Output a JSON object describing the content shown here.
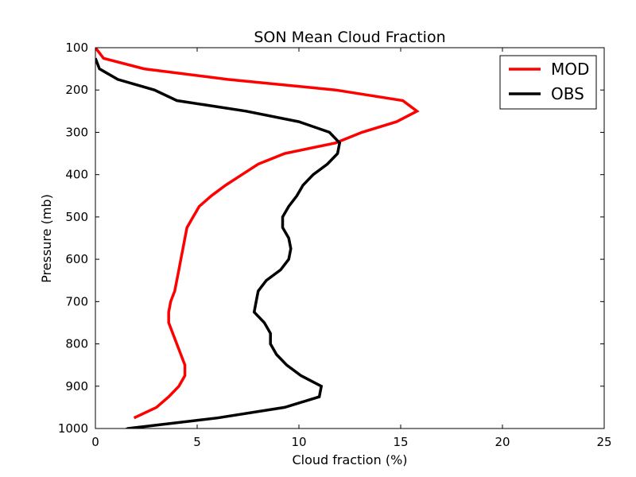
{
  "chart_data": {
    "type": "line",
    "title": "SON Mean Cloud Fraction",
    "xlabel": "Cloud fraction (%)",
    "ylabel": "Pressure (mb)",
    "xlim": [
      0,
      25
    ],
    "ylim": [
      1000,
      100
    ],
    "y_inverted": true,
    "xticks": [
      "0",
      "5",
      "10",
      "15",
      "20",
      "25"
    ],
    "yticks": [
      "100",
      "200",
      "300",
      "400",
      "500",
      "600",
      "700",
      "800",
      "900",
      "1000"
    ],
    "grid": false,
    "legend": "top-right",
    "series": [
      {
        "name": "MOD",
        "color": "#ff0000",
        "points": [
          [
            0.0,
            100
          ],
          [
            0.4,
            125
          ],
          [
            2.4,
            150
          ],
          [
            6.5,
            175
          ],
          [
            11.8,
            200
          ],
          [
            15.1,
            225
          ],
          [
            15.8,
            250
          ],
          [
            14.8,
            275
          ],
          [
            13.1,
            300
          ],
          [
            11.8,
            325
          ],
          [
            9.3,
            350
          ],
          [
            8.0,
            375
          ],
          [
            7.2,
            400
          ],
          [
            6.4,
            425
          ],
          [
            5.7,
            450
          ],
          [
            5.1,
            475
          ],
          [
            4.8,
            500
          ],
          [
            4.5,
            525
          ],
          [
            4.4,
            550
          ],
          [
            4.3,
            575
          ],
          [
            4.2,
            600
          ],
          [
            4.1,
            625
          ],
          [
            4.0,
            650
          ],
          [
            3.9,
            675
          ],
          [
            3.7,
            700
          ],
          [
            3.6,
            725
          ],
          [
            3.6,
            750
          ],
          [
            3.8,
            775
          ],
          [
            4.0,
            800
          ],
          [
            4.2,
            825
          ],
          [
            4.4,
            850
          ],
          [
            4.4,
            875
          ],
          [
            4.1,
            900
          ],
          [
            3.6,
            925
          ],
          [
            3.0,
            950
          ],
          [
            1.9,
            975
          ]
        ]
      },
      {
        "name": "OBS",
        "color": "#000000",
        "points": [
          [
            0.0,
            125
          ],
          [
            0.2,
            150
          ],
          [
            1.1,
            175
          ],
          [
            2.9,
            200
          ],
          [
            4.0,
            225
          ],
          [
            7.4,
            250
          ],
          [
            10.0,
            275
          ],
          [
            11.5,
            300
          ],
          [
            12.0,
            325
          ],
          [
            11.9,
            350
          ],
          [
            11.4,
            375
          ],
          [
            10.7,
            400
          ],
          [
            10.2,
            425
          ],
          [
            9.9,
            450
          ],
          [
            9.5,
            475
          ],
          [
            9.2,
            500
          ],
          [
            9.2,
            525
          ],
          [
            9.5,
            550
          ],
          [
            9.6,
            575
          ],
          [
            9.5,
            600
          ],
          [
            9.1,
            625
          ],
          [
            8.4,
            650
          ],
          [
            8.0,
            675
          ],
          [
            7.9,
            700
          ],
          [
            7.8,
            725
          ],
          [
            8.3,
            750
          ],
          [
            8.6,
            775
          ],
          [
            8.6,
            800
          ],
          [
            8.9,
            825
          ],
          [
            9.4,
            850
          ],
          [
            10.1,
            875
          ],
          [
            11.1,
            900
          ],
          [
            11.0,
            925
          ],
          [
            9.3,
            950
          ],
          [
            6.0,
            975
          ],
          [
            1.6,
            1000
          ],
          [
            0.3,
            1025
          ]
        ]
      }
    ]
  }
}
